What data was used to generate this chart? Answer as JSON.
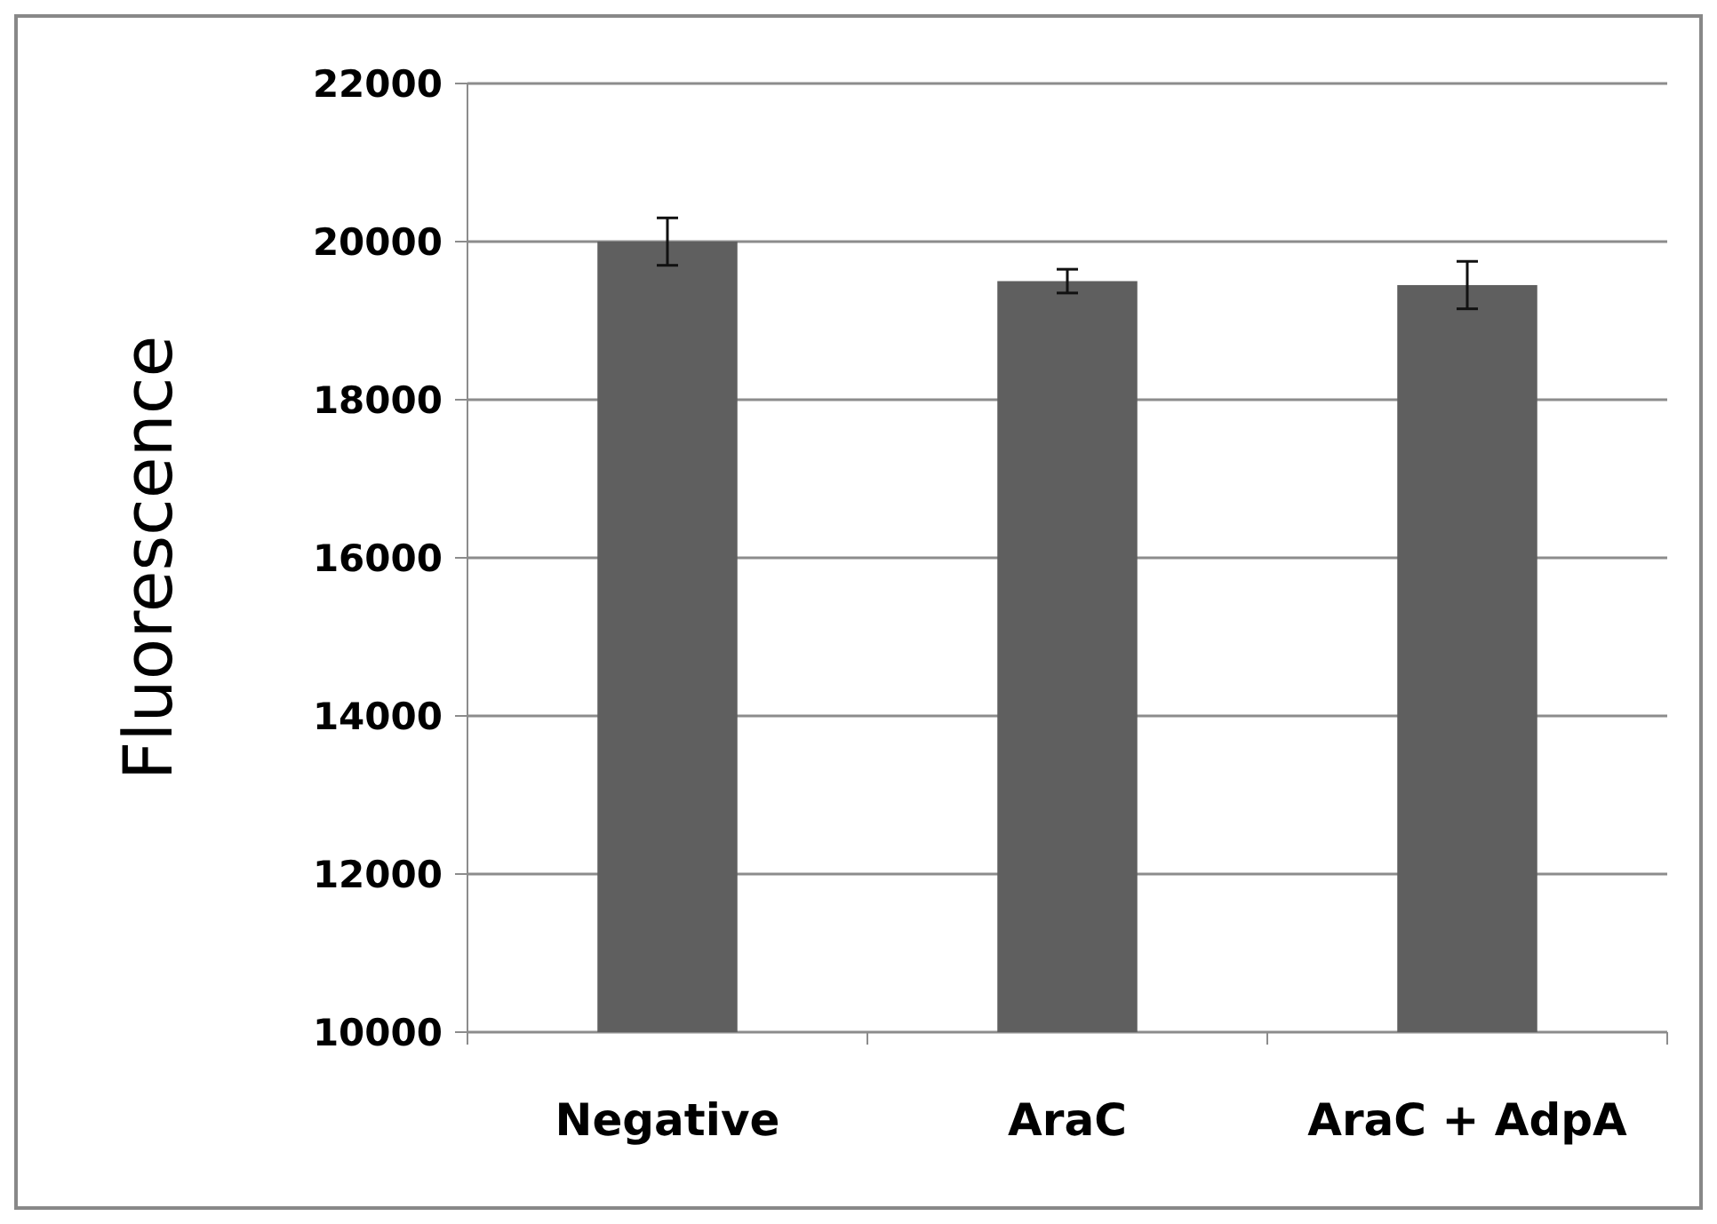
{
  "chart_data": {
    "type": "bar",
    "ylabel": "Fluorescence",
    "categories": [
      "Negative",
      "AraC",
      "AraC + AdpA"
    ],
    "values": [
      20000,
      19500,
      19450
    ],
    "errors": [
      300,
      150,
      300
    ],
    "color": "#5f5f5f",
    "ylim": [
      10000,
      22000
    ],
    "yticks": [
      10000,
      12000,
      14000,
      16000,
      18000,
      20000,
      22000
    ],
    "grid": "y"
  }
}
